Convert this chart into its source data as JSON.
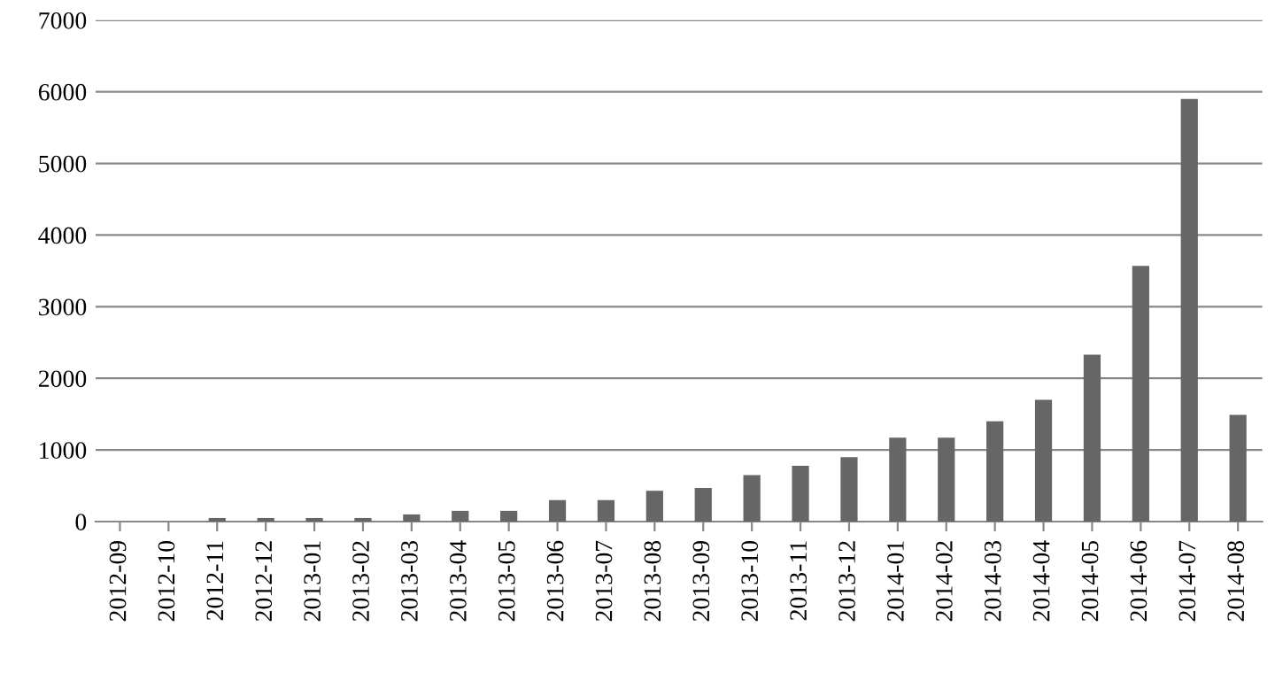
{
  "chart_data": {
    "type": "bar",
    "categories": [
      "2012-09",
      "2012-10",
      "2012-11",
      "2012-12",
      "2013-01",
      "2013-02",
      "2013-03",
      "2013-04",
      "2013-05",
      "2013-06",
      "2013-07",
      "2013-08",
      "2013-09",
      "2013-10",
      "2013-11",
      "2013-12",
      "2014-01",
      "2014-02",
      "2014-03",
      "2014-04",
      "2014-05",
      "2014-06",
      "2014-07",
      "2014-08"
    ],
    "values": [
      null,
      null,
      50,
      50,
      50,
      50,
      100,
      150,
      150,
      300,
      300,
      430,
      470,
      650,
      780,
      900,
      1170,
      1170,
      1400,
      1700,
      2330,
      3570,
      5900,
      1490
    ],
    "color": "#666666",
    "ylim": [
      0,
      7000
    ],
    "yticks": [
      0,
      1000,
      2000,
      3000,
      4000,
      5000,
      6000,
      7000
    ],
    "grid": "y"
  }
}
